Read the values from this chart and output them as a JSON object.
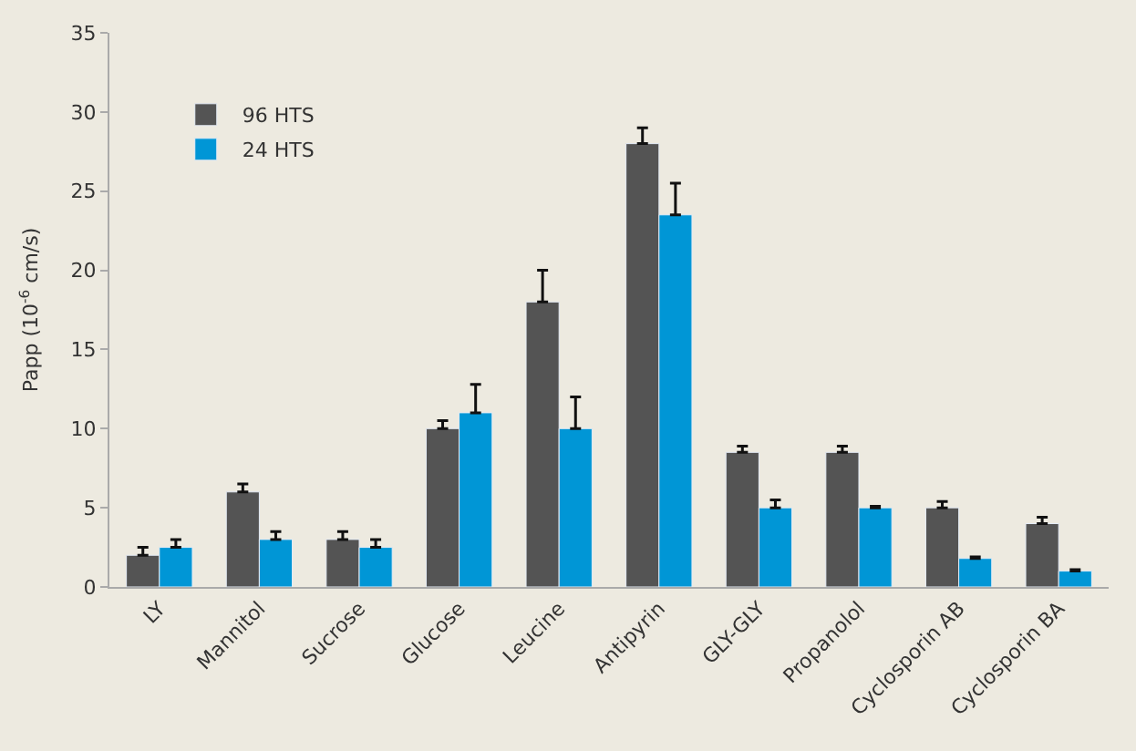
{
  "chart_data": {
    "type": "bar",
    "ylabel": "Papp (10$^{-6}$ cm/s)",
    "categories": [
      "LY",
      "Mannitol",
      "Sucrose",
      "Glucose",
      "Leucine",
      "Antipyrin",
      "GLY-GLY",
      "Propanolol",
      "Cyclosporin AB",
      "Cyclosporin BA"
    ],
    "series": [
      {
        "name": "96 HTS",
        "color": "#545454",
        "values": [
          2,
          6,
          3,
          10,
          18,
          28,
          8.5,
          8.5,
          5,
          4
        ],
        "errors": [
          [
            2,
            2.5
          ],
          [
            6,
            6.5
          ],
          [
            3,
            3.5
          ],
          [
            10,
            10.5
          ],
          [
            18,
            20
          ],
          [
            28,
            29
          ],
          [
            8.5,
            8.9
          ],
          [
            8.5,
            8.9
          ],
          [
            5,
            5.4
          ],
          [
            4,
            4.4
          ]
        ]
      },
      {
        "name": "24 HTS",
        "color": "#0096d6",
        "values": [
          2.5,
          3,
          2.5,
          11,
          10,
          23.5,
          5,
          5,
          1.8,
          1
        ],
        "errors": [
          [
            2.5,
            3
          ],
          [
            3,
            3.5
          ],
          [
            2.5,
            3
          ],
          [
            11,
            12.8
          ],
          [
            10,
            12
          ],
          [
            23.5,
            25.5
          ],
          [
            5,
            5.5
          ],
          [
            5,
            5.1
          ],
          [
            1.8,
            1.9
          ],
          [
            1,
            1.1
          ]
        ]
      }
    ],
    "ylim": [
      0,
      35
    ],
    "yticks": [
      0,
      5,
      10,
      15,
      20,
      25,
      30,
      35
    ],
    "grid": false,
    "legend": "top left"
  }
}
